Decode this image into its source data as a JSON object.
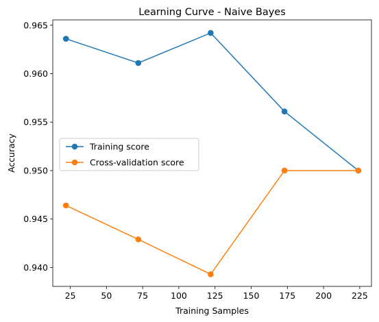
{
  "chart_data": {
    "type": "line",
    "title": "Learning Curve - Naive Bayes",
    "xlabel": "Training Samples",
    "ylabel": "Accuracy",
    "x": [
      22,
      72,
      122,
      173,
      224
    ],
    "xlim": [
      12.9,
      233.1
    ],
    "ylim": [
      0.93805,
      0.96555
    ],
    "xticks": [
      25,
      50,
      75,
      100,
      125,
      150,
      175,
      200,
      225
    ],
    "xtick_labels": [
      "25",
      "50",
      "75",
      "100",
      "125",
      "150",
      "175",
      "200",
      "225"
    ],
    "yticks": [
      0.94,
      0.945,
      0.95,
      0.955,
      0.96,
      0.965
    ],
    "ytick_labels": [
      "0.940",
      "0.945",
      "0.950",
      "0.955",
      "0.960",
      "0.965"
    ],
    "grid": false,
    "legend_position": "center-left",
    "series": [
      {
        "name": "Training score",
        "color": "#1f77b4",
        "marker": "circle",
        "values": [
          0.9636,
          0.9611,
          0.9642,
          0.9561,
          0.95
        ]
      },
      {
        "name": "Cross-validation score",
        "color": "#ff7f0e",
        "marker": "circle",
        "values": [
          0.9464,
          0.9429,
          0.9393,
          0.95,
          0.95
        ]
      }
    ]
  }
}
